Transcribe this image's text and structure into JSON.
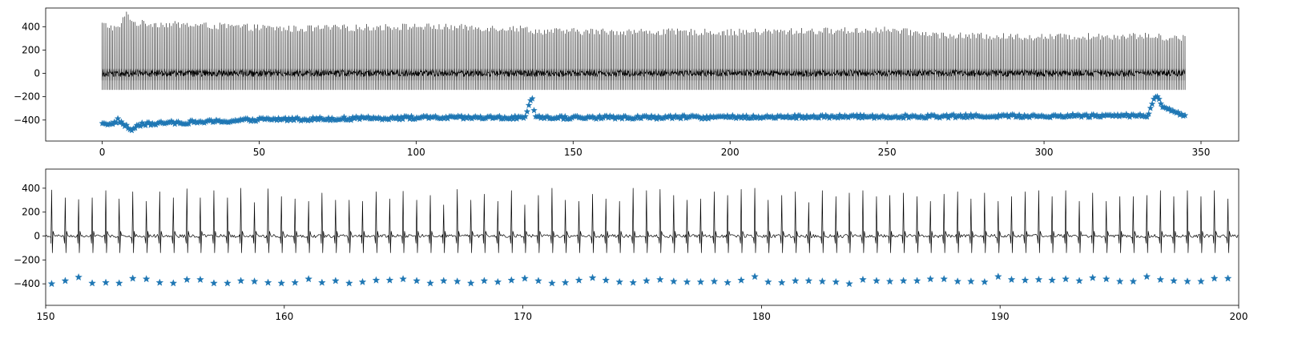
{
  "chart_data": [
    {
      "type": "line",
      "title": "",
      "xlabel": "",
      "ylabel": "",
      "xlim": [
        -18,
        362
      ],
      "ylim": [
        -580,
        560
      ],
      "xticks": [
        0,
        50,
        100,
        150,
        200,
        250,
        300,
        350
      ],
      "yticks": [
        -400,
        -200,
        0,
        200,
        400
      ],
      "grid": false,
      "series": [
        {
          "kind": "signal",
          "color": "#000000",
          "x_range": [
            0,
            345
          ],
          "beat_interval": 0.55,
          "baseline": 0,
          "peak_envelope": [
            [
              0,
              420
            ],
            [
              5,
              380
            ],
            [
              8,
              520
            ],
            [
              10,
              430
            ],
            [
              30,
              410
            ],
            [
              60,
              380
            ],
            [
              100,
              400
            ],
            [
              136,
              380
            ],
            [
              137,
              360
            ],
            [
              200,
              350
            ],
            [
              250,
              370
            ],
            [
              270,
              320
            ],
            [
              300,
              310
            ],
            [
              330,
              320
            ],
            [
              345,
              300
            ]
          ]
        },
        {
          "kind": "markers",
          "marker": "*",
          "color": "#1f77b4",
          "trough_envelope": [
            [
              0,
              -420
            ],
            [
              3,
              -440
            ],
            [
              5,
              -400
            ],
            [
              8,
              -460
            ],
            [
              9,
              -490
            ],
            [
              12,
              -440
            ],
            [
              20,
              -425
            ],
            [
              40,
              -410
            ],
            [
              50,
              -395
            ],
            [
              70,
              -390
            ],
            [
              100,
              -380
            ],
            [
              135,
              -380
            ],
            [
              136,
              -260
            ],
            [
              137,
              -230
            ],
            [
              138,
              -380
            ],
            [
              200,
              -375
            ],
            [
              250,
              -370
            ],
            [
              300,
              -365
            ],
            [
              333,
              -360
            ],
            [
              335,
              -230
            ],
            [
              336,
              -200
            ],
            [
              338,
              -300
            ],
            [
              345,
              -360
            ]
          ]
        }
      ]
    },
    {
      "type": "line",
      "title": "",
      "xlabel": "",
      "ylabel": "",
      "xlim": [
        150,
        200
      ],
      "ylim": [
        -580,
        560
      ],
      "xticks": [
        150,
        160,
        170,
        180,
        190,
        200
      ],
      "yticks": [
        -400,
        -200,
        0,
        200,
        400
      ],
      "grid": false,
      "series": [
        {
          "kind": "signal",
          "color": "#000000",
          "x_range": [
            150,
            200
          ],
          "beat_x": [
            150.25,
            150.82,
            151.38,
            151.95,
            152.52,
            153.08,
            153.65,
            154.22,
            154.78,
            155.35,
            155.92,
            156.48,
            157.05,
            157.62,
            158.18,
            158.75,
            159.32,
            159.88,
            160.45,
            161.02,
            161.58,
            162.15,
            162.72,
            163.28,
            163.85,
            164.42,
            164.98,
            165.55,
            166.12,
            166.68,
            167.25,
            167.82,
            168.38,
            168.95,
            169.52,
            170.08,
            170.65,
            171.22,
            171.78,
            172.35,
            172.92,
            173.48,
            174.05,
            174.62,
            175.18,
            175.75,
            176.32,
            176.88,
            177.45,
            178.02,
            178.58,
            179.15,
            179.72,
            180.28,
            180.85,
            181.42,
            181.98,
            182.55,
            183.12,
            183.68,
            184.25,
            184.82,
            185.38,
            185.95,
            186.52,
            187.08,
            187.65,
            188.22,
            188.78,
            189.35,
            189.92,
            190.48,
            191.05,
            191.62,
            192.18,
            192.75,
            193.32,
            193.88,
            194.45,
            195.02,
            195.58,
            196.15,
            196.72,
            197.28,
            197.85,
            198.42,
            198.98,
            199.55
          ],
          "peak_values": [
            385,
            320,
            305,
            320,
            380,
            310,
            370,
            290,
            370,
            320,
            395,
            320,
            380,
            320,
            400,
            280,
            395,
            330,
            310,
            290,
            360,
            300,
            300,
            290,
            370,
            310,
            375,
            300,
            340,
            260,
            390,
            300,
            350,
            290,
            380,
            260,
            340,
            400,
            300,
            290,
            350,
            310,
            290,
            400,
            380,
            390,
            340,
            300,
            310,
            370,
            340,
            390,
            400,
            300,
            340,
            370,
            280,
            380,
            330,
            360,
            380,
            330,
            340,
            360,
            330,
            290,
            350,
            370,
            310,
            360,
            290,
            330,
            370,
            380,
            330,
            380,
            290,
            360,
            290,
            330,
            330,
            340,
            380,
            330,
            380,
            330,
            380,
            310
          ]
        },
        {
          "kind": "markers",
          "marker": "*",
          "color": "#1f77b4",
          "trough_values": [
            -400,
            -375,
            -345,
            -395,
            -390,
            -395,
            -355,
            -360,
            -390,
            -395,
            -365,
            -365,
            -395,
            -395,
            -375,
            -380,
            -390,
            -395,
            -390,
            -360,
            -390,
            -375,
            -395,
            -385,
            -370,
            -370,
            -360,
            -375,
            -395,
            -375,
            -380,
            -395,
            -375,
            -385,
            -370,
            -355,
            -375,
            -395,
            -390,
            -370,
            -350,
            -370,
            -385,
            -390,
            -375,
            -365,
            -380,
            -385,
            -385,
            -380,
            -390,
            -370,
            -340,
            -385,
            -390,
            -375,
            -375,
            -380,
            -385,
            -400,
            -365,
            -375,
            -380,
            -375,
            -375,
            -360,
            -360,
            -380,
            -380,
            -385,
            -340,
            -365,
            -370,
            -365,
            -370,
            -360,
            -375,
            -350,
            -360,
            -380,
            -380,
            -340,
            -365,
            -375,
            -380,
            -380,
            -355,
            -355
          ]
        }
      ]
    }
  ]
}
